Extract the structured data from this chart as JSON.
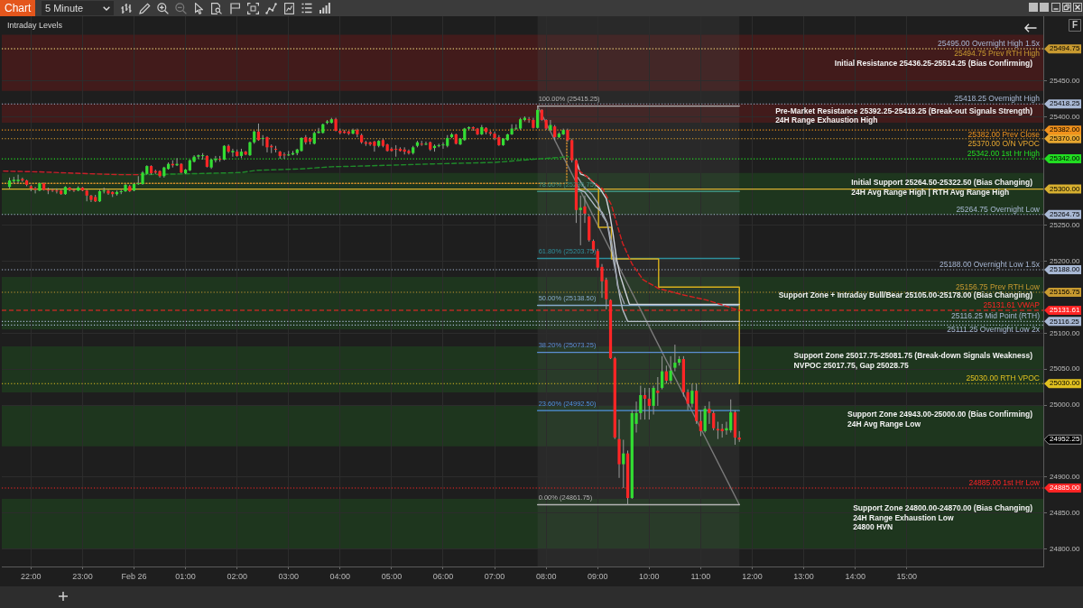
{
  "chart_data": {
    "type": "candlestick",
    "title": "Chart",
    "subtitle": "5 Minute",
    "x": [
      "--02-25T21:35",
      "--02-25T21:40",
      "--02-25T21:45",
      "--02-25T21:50",
      "--02-25T21:55",
      "--02-25T22:00",
      "--02-25T22:05",
      "--02-25T22:10",
      "--02-25T22:15",
      "--02-25T22:20",
      "--02-25T22:25",
      "--02-25T22:30",
      "--02-25T22:35",
      "--02-25T22:40",
      "--02-25T22:45",
      "--02-25T22:50",
      "--02-25T22:55",
      "--02-25T23:00",
      "--02-25T23:05",
      "--02-25T23:10",
      "--02-25T23:15",
      "--02-25T23:20",
      "--02-25T23:25",
      "--02-25T23:30",
      "--02-25T23:35",
      "--02-25T23:40",
      "--02-25T23:45",
      "--02-25T23:50",
      "--02-25T23:55",
      "--02-26T00:00",
      "--02-26T00:05",
      "--02-26T00:10",
      "--02-26T00:15",
      "--02-26T00:20",
      "--02-26T00:25",
      "--02-26T00:30",
      "--02-26T00:35",
      "--02-26T00:40",
      "--02-26T00:45",
      "--02-26T00:50",
      "--02-26T00:55",
      "--02-26T01:00",
      "--02-26T01:05",
      "--02-26T01:10",
      "--02-26T01:15",
      "--02-26T01:20",
      "--02-26T01:25",
      "--02-26T01:30",
      "--02-26T01:35",
      "--02-26T01:40",
      "--02-26T01:45",
      "--02-26T01:50",
      "--02-26T01:55",
      "--02-26T02:00",
      "--02-26T02:05",
      "--02-26T02:10",
      "--02-26T02:15",
      "--02-26T02:20",
      "--02-26T02:25",
      "--02-26T02:30",
      "--02-26T02:35",
      "--02-26T02:40",
      "--02-26T02:45",
      "--02-26T02:50",
      "--02-26T02:55",
      "--02-26T03:00",
      "--02-26T03:05",
      "--02-26T03:10",
      "--02-26T03:15",
      "--02-26T03:20",
      "--02-26T03:25",
      "--02-26T03:30",
      "--02-26T03:35",
      "--02-26T03:40",
      "--02-26T03:45",
      "--02-26T03:50",
      "--02-26T03:55",
      "--02-26T04:00",
      "--02-26T04:05",
      "--02-26T04:10",
      "--02-26T04:15",
      "--02-26T04:20",
      "--02-26T04:25",
      "--02-26T04:30",
      "--02-26T04:35",
      "--02-26T04:40",
      "--02-26T04:45",
      "--02-26T04:50",
      "--02-26T04:55",
      "--02-26T05:00",
      "--02-26T05:05",
      "--02-26T05:10",
      "--02-26T05:15",
      "--02-26T05:20",
      "--02-26T05:25",
      "--02-26T05:30",
      "--02-26T05:35",
      "--02-26T05:40",
      "--02-26T05:45",
      "--02-26T05:50",
      "--02-26T05:55",
      "--02-26T06:00",
      "--02-26T06:05",
      "--02-26T06:10",
      "--02-26T06:15",
      "--02-26T06:20",
      "--02-26T06:25",
      "--02-26T06:30",
      "--02-26T06:35",
      "--02-26T06:40",
      "--02-26T06:45",
      "--02-26T06:50",
      "--02-26T06:55",
      "--02-26T07:00",
      "--02-26T07:05",
      "--02-26T07:10",
      "--02-26T07:15",
      "--02-26T07:20",
      "--02-26T07:25",
      "--02-26T07:30",
      "--02-26T07:35",
      "--02-26T07:40",
      "--02-26T07:45",
      "--02-26T07:50",
      "--02-26T07:55",
      "--02-26T08:00",
      "--02-26T08:05",
      "--02-26T08:10",
      "--02-26T08:15",
      "--02-26T08:20",
      "--02-26T08:25",
      "--02-26T08:30",
      "--02-26T08:35",
      "--02-26T08:40",
      "--02-26T08:45",
      "--02-26T08:50",
      "--02-26T08:55",
      "--02-26T09:00",
      "--02-26T09:05",
      "--02-26T09:10",
      "--02-26T09:15",
      "--02-26T09:20",
      "--02-26T09:25",
      "--02-26T09:30",
      "--02-26T09:35",
      "--02-26T09:40",
      "--02-26T09:45",
      "--02-26T09:50",
      "--02-26T09:55",
      "--02-26T10:00",
      "--02-26T10:05",
      "--02-26T10:10",
      "--02-26T10:15",
      "--02-26T10:20",
      "--02-26T10:25",
      "--02-26T10:30",
      "--02-26T10:35",
      "--02-26T10:40",
      "--02-26T10:45",
      "--02-26T10:50",
      "--02-26T10:55",
      "--02-26T11:00",
      "--02-26T11:05",
      "--02-26T11:10",
      "--02-26T11:15",
      "--02-26T11:20",
      "--02-26T11:25",
      "--02-26T11:30",
      "--02-26T11:35",
      "--02-26T11:40",
      "--02-26T11:45"
    ],
    "ohlc": [
      [
        25303,
        25316,
        25301,
        25312
      ],
      [
        25311,
        25317,
        25308,
        25313
      ],
      [
        25311,
        25320,
        25308,
        25313
      ],
      [
        25314,
        25316,
        25310,
        25312
      ],
      [
        25312,
        25313,
        25304,
        25306
      ],
      [
        25304,
        25306,
        25297,
        25301
      ],
      [
        25301,
        25303,
        25294,
        25299
      ],
      [
        25298,
        25309,
        25297,
        25308
      ],
      [
        25308,
        25309,
        25298,
        25299
      ],
      [
        25299,
        25302,
        25293,
        25298
      ],
      [
        25299,
        25301,
        25296,
        25298
      ],
      [
        25298,
        25301,
        25294,
        25297
      ],
      [
        25298,
        25299,
        25292,
        25293
      ],
      [
        25293,
        25304,
        25292,
        25303
      ],
      [
        25302,
        25303,
        25297,
        25299
      ],
      [
        25299,
        25301,
        25296,
        25298
      ],
      [
        25298,
        25304,
        25297,
        25302
      ],
      [
        25302,
        25303,
        25297,
        25298
      ],
      [
        25298,
        25299,
        25283,
        25291
      ],
      [
        25291,
        25292,
        25282,
        25285
      ],
      [
        25289,
        25292,
        25282,
        25283
      ],
      [
        25283,
        25299,
        25282,
        25297
      ],
      [
        25297,
        25302,
        25294,
        25298
      ],
      [
        25298,
        25299,
        25292,
        25294
      ],
      [
        25296,
        25297,
        25289,
        25293
      ],
      [
        25293,
        25298,
        25291,
        25296
      ],
      [
        25296,
        25299,
        25293,
        25297
      ],
      [
        25297,
        25307,
        25296,
        25306
      ],
      [
        25304,
        25306,
        25296,
        25297
      ],
      [
        25298,
        25308,
        25297,
        25307
      ],
      [
        25307,
        25318,
        25306,
        25308
      ],
      [
        25307,
        25325,
        25306,
        25323
      ],
      [
        25321,
        25333,
        25320,
        25332
      ],
      [
        25332,
        25333,
        25320,
        25322
      ],
      [
        25325,
        25327,
        25321,
        25323
      ],
      [
        25325,
        25326,
        25316,
        25318
      ],
      [
        25318,
        25331,
        25316,
        25330
      ],
      [
        25328,
        25337,
        25327,
        25335
      ],
      [
        25335,
        25340,
        25330,
        25333
      ],
      [
        25333,
        25343,
        25332,
        25335
      ],
      [
        25335,
        25336,
        25322,
        25323
      ],
      [
        25322,
        25328,
        25321,
        25327
      ],
      [
        25326,
        25341,
        25325,
        25340
      ],
      [
        25338,
        25347,
        25337,
        25345
      ],
      [
        25345,
        25348,
        25342,
        25347
      ],
      [
        25346,
        25350,
        25341,
        25347
      ],
      [
        25346,
        25347,
        25330,
        25331
      ],
      [
        25330,
        25342,
        25328,
        25341
      ],
      [
        25340,
        25346,
        25337,
        25342
      ],
      [
        25342,
        25346,
        25338,
        25341
      ],
      [
        25341,
        25361,
        25340,
        25360
      ],
      [
        25360,
        25362,
        25350,
        25352
      ],
      [
        25351,
        25356,
        25345,
        25353
      ],
      [
        25352,
        25355,
        25345,
        25346
      ],
      [
        25346,
        25356,
        25343,
        25352
      ],
      [
        25352,
        25353,
        25347,
        25348
      ],
      [
        25347,
        25366,
        25346,
        25365
      ],
      [
        25365,
        25381,
        25363,
        25380
      ],
      [
        25380,
        25391,
        25367,
        25368
      ],
      [
        25370,
        25375,
        25360,
        25371
      ],
      [
        25372,
        25373,
        25351,
        25358
      ],
      [
        25360,
        25362,
        25350,
        25358
      ],
      [
        25356,
        25360,
        25351,
        25355
      ],
      [
        25352,
        25353,
        25342,
        25346
      ],
      [
        25348,
        25351,
        25342,
        25347
      ],
      [
        25348,
        25353,
        25346,
        25348
      ],
      [
        25348,
        25353,
        25347,
        25350
      ],
      [
        25350,
        25356,
        25347,
        25355
      ],
      [
        25353,
        25372,
        25352,
        25371
      ],
      [
        25372,
        25375,
        25362,
        25365
      ],
      [
        25370,
        25372,
        25362,
        25366
      ],
      [
        25363,
        25380,
        25362,
        25378
      ],
      [
        25378,
        25385,
        25377,
        25380
      ],
      [
        25378,
        25391,
        25377,
        25390
      ],
      [
        25392,
        25396,
        25390,
        25394
      ],
      [
        25392,
        25399,
        25391,
        25397
      ],
      [
        25397,
        25399,
        25380,
        25381
      ],
      [
        25381,
        25384,
        25376,
        25378
      ],
      [
        25380,
        25382,
        25377,
        25378
      ],
      [
        25380,
        25381,
        25375,
        25377
      ],
      [
        25377,
        25384,
        25376,
        25382
      ],
      [
        25382,
        25384,
        25372,
        25376
      ],
      [
        25375,
        25377,
        25363,
        25365
      ],
      [
        25365,
        25367,
        25360,
        25363
      ],
      [
        25365,
        25366,
        25360,
        25362
      ],
      [
        25366,
        25367,
        25352,
        25360
      ],
      [
        25360,
        25368,
        25358,
        25367
      ],
      [
        25368,
        25370,
        25358,
        25360
      ],
      [
        25362,
        25363,
        25352,
        25353
      ],
      [
        25356,
        25358,
        25352,
        25353
      ],
      [
        25356,
        25361,
        25345,
        25355
      ],
      [
        25356,
        25358,
        25352,
        25353
      ],
      [
        25355,
        25358,
        25348,
        25352
      ],
      [
        25353,
        25355,
        25348,
        25350
      ],
      [
        25350,
        25360,
        25348,
        25358
      ],
      [
        25360,
        25367,
        25358,
        25365
      ],
      [
        25363,
        25367,
        25360,
        25362
      ],
      [
        25362,
        25366,
        25361,
        25363
      ],
      [
        25365,
        25366,
        25353,
        25355
      ],
      [
        25357,
        25362,
        25352,
        25360
      ],
      [
        25360,
        25363,
        25358,
        25361
      ],
      [
        25361,
        25365,
        25356,
        25362
      ],
      [
        25360,
        25375,
        25358,
        25371
      ],
      [
        25372,
        25378,
        25371,
        25376
      ],
      [
        25376,
        25377,
        25362,
        25363
      ],
      [
        25362,
        25371,
        25361,
        25370
      ],
      [
        25368,
        25385,
        25367,
        25384
      ],
      [
        25384,
        25387,
        25382,
        25386
      ],
      [
        25386,
        25387,
        25381,
        25384
      ],
      [
        25384,
        25385,
        25375,
        25376
      ],
      [
        25376,
        25389,
        25375,
        25386
      ],
      [
        25385,
        25386,
        25376,
        25379
      ],
      [
        25379,
        25381,
        25374,
        25377
      ],
      [
        25377,
        25380,
        25368,
        25371
      ],
      [
        25372,
        25375,
        25360,
        25361
      ],
      [
        25361,
        25371,
        25360,
        25370
      ],
      [
        25368,
        25377,
        25367,
        25376
      ],
      [
        25376,
        25390,
        25375,
        25384
      ],
      [
        25384,
        25390,
        25382,
        25385
      ],
      [
        25384,
        25399,
        25382,
        25397
      ],
      [
        25396,
        25401,
        25394,
        25399
      ],
      [
        25397,
        25400,
        25392,
        25396
      ],
      [
        25396,
        25399,
        25384,
        25385
      ],
      [
        25385,
        25415.25,
        25384,
        25410
      ],
      [
        25410,
        25411,
        25395,
        25396
      ],
      [
        25396,
        25397,
        25382,
        25384
      ],
      [
        25382,
        25396,
        25381,
        25389
      ],
      [
        25387,
        25389,
        25368,
        25372
      ],
      [
        25372,
        25379,
        25371,
        25377
      ],
      [
        25376,
        25384,
        25375,
        25382
      ],
      [
        25382,
        25384,
        25366,
        25368
      ],
      [
        25368,
        25370,
        25337,
        25340
      ],
      [
        25340,
        25342,
        25253,
        25271
      ],
      [
        25271,
        25291,
        25222,
        25274
      ],
      [
        25276,
        25291,
        25253,
        25266
      ],
      [
        25262,
        25264,
        25227,
        25229
      ],
      [
        25228,
        25230,
        25212,
        25215
      ],
      [
        25214,
        25217,
        25187,
        25191
      ],
      [
        25192,
        25196,
        25149,
        25172
      ],
      [
        25174,
        25177,
        25133,
        25147
      ],
      [
        25146,
        25147,
        25064,
        25065
      ],
      [
        25065,
        25067,
        24953,
        24955
      ],
      [
        24953,
        24980,
        24899,
        24918
      ],
      [
        24918,
        24952,
        24885,
        24933
      ],
      [
        24933,
        24937,
        24861.75,
        24871
      ],
      [
        24871,
        24993,
        24870,
        24989
      ],
      [
        24974,
        25005,
        24962,
        24989
      ],
      [
        24989,
        25027,
        24980,
        25014
      ],
      [
        25014,
        25024,
        24980,
        25009
      ],
      [
        25009,
        25024,
        24980,
        24999
      ],
      [
        24999,
        25027,
        24987,
        25024
      ],
      [
        25020,
        25039,
        24999,
        25017
      ],
      [
        25024,
        25068,
        25022,
        25047
      ],
      [
        25047,
        25055,
        25030,
        25034
      ],
      [
        25034,
        25068,
        25030,
        25048
      ],
      [
        25052,
        25084,
        25047,
        25059
      ],
      [
        25059,
        25068,
        25055,
        25064
      ],
      [
        25064,
        25068,
        25012,
        25018
      ],
      [
        25018,
        25022,
        24993,
        25002
      ],
      [
        25002,
        25030,
        24997,
        25020
      ],
      [
        25020,
        25030,
        24974,
        24978
      ],
      [
        24978,
        24993,
        24957,
        24964
      ],
      [
        24964,
        24999,
        24962,
        24995
      ],
      [
        24995,
        25005,
        24974,
        24989
      ],
      [
        24989,
        24992,
        24965,
        24968
      ],
      [
        24967,
        24977,
        24953,
        24965
      ],
      [
        24967,
        24974,
        24955,
        24964
      ],
      [
        24965,
        24977,
        24959,
        24968
      ],
      [
        24965,
        25008,
        24962,
        24990
      ],
      [
        24990,
        24993,
        24945,
        24955
      ],
      [
        24955,
        24964,
        24949,
        24952.25
      ]
    ],
    "series": [
      {
        "type": "line",
        "color": "#c8202a",
        "line_style": "dashed",
        "x": [
          "--02-25T21:28",
          "--02-25T22:07",
          "--02-25T22:52",
          "--02-25T23:44",
          "--02-26T00:09"
        ],
        "values": [
          25325,
          25324,
          25322,
          25320,
          25320
        ]
      },
      {
        "type": "line",
        "color": "#1f8a2a",
        "line_style": "dashed",
        "x": [
          "--02-26T00:09",
          "--02-26T00:55",
          "--02-26T02:05",
          "--02-26T02:22",
          "--02-26T03:14",
          "--02-26T03:50",
          "--02-26T04:25",
          "--02-26T05:49",
          "--02-26T06:59",
          "--02-26T07:52",
          "--02-26T08:26"
        ],
        "values": [
          25320,
          25321,
          25323,
          25326,
          25328,
          25331,
          25332,
          25335,
          25337,
          25342,
          25345
        ]
      },
      {
        "type": "line",
        "color": "#d42020",
        "line_style": "dashed",
        "x": [
          "--02-26T08:38",
          "--02-26T09:06",
          "--02-26T09:16",
          "--02-26T09:22",
          "--02-26T09:29",
          "--02-26T09:40",
          "--02-26T09:53",
          "--02-26T10:11",
          "--02-26T10:40",
          "--02-26T11:07",
          "--02-26T11:45"
        ],
        "values": [
          25326,
          25300,
          25278,
          25253,
          25225,
          25196,
          25174,
          25162,
          25153,
          25146,
          25131.61
        ]
      },
      {
        "type": "line",
        "color": "#d0d4dc",
        "x": [
          "--02-26T08:35",
          "--02-26T08:40",
          "--02-26T08:47",
          "--02-26T08:56",
          "--02-26T09:03",
          "--02-26T09:10",
          "--02-26T09:14",
          "--02-26T09:18",
          "--02-26T09:22",
          "--02-26T09:26",
          "--02-26T09:31",
          "--02-26T09:37",
          "--02-26T11:45"
        ],
        "values": [
          25340,
          25321,
          25318,
          25308,
          25300,
          25287,
          25266,
          25237,
          25203,
          25181,
          25162,
          25140,
          25140
        ]
      },
      {
        "type": "line",
        "color": "#9aa0ac",
        "x": [
          "--02-26T08:37",
          "--02-26T08:44",
          "--02-26T08:53",
          "--02-26T09:00",
          "--02-26T09:06",
          "--02-26T09:11",
          "--02-26T09:16",
          "--02-26T09:20",
          "--02-26T09:23",
          "--02-26T09:27",
          "--02-26T09:31"
        ],
        "values": [
          25316,
          25303,
          25293,
          25281,
          25262,
          25253,
          25228,
          25200,
          25166,
          25153,
          25141
        ]
      },
      {
        "type": "line",
        "color": "#b4bcc8",
        "x": [
          "--02-26T08:37",
          "--02-26T08:45",
          "--02-26T08:53",
          "--02-26T08:58",
          "--02-26T09:05",
          "--02-26T09:11",
          "--02-26T09:14",
          "--02-26T09:18",
          "--02-26T09:22",
          "--02-26T09:26",
          "--02-26T09:29",
          "--02-26T09:35",
          "--02-26T11:45"
        ],
        "values": [
          25300,
          25296,
          25283,
          25275,
          25268,
          25253,
          25233,
          25203,
          25178,
          25149,
          25133,
          25116.25,
          25116.25
        ]
      },
      {
        "type": "step",
        "color": "#d8b01c",
        "x": [
          "--02-26T08:37",
          "--02-26T09:01",
          "--02-26T09:16",
          "--02-26T10:11",
          "--02-26T11:45"
        ],
        "values": [
          25300,
          25247,
          25203,
          25164,
          25030
        ]
      },
      {
        "type": "step",
        "color": "#d8902a",
        "line_style": "dotted",
        "x": [
          "--02-25T21:26",
          "--02-26T08:24",
          "--02-26T08:24"
        ],
        "values": [
          25308,
          25308,
          25370
        ]
      },
      {
        "type": "line",
        "color": "#b4b4b4",
        "x": [
          "--02-26T07:50",
          "--02-26T11:45"
        ],
        "values": [
          25415.25,
          25415.25
        ]
      },
      {
        "type": "line",
        "color": "#3f8f7d",
        "x": [
          "--02-26T07:50",
          "--02-26T11:45"
        ],
        "values": [
          25296.75,
          25296.75
        ]
      },
      {
        "type": "line",
        "color": "#2e8f9c",
        "x": [
          "--02-26T07:50",
          "--02-26T11:45"
        ],
        "values": [
          25203.75,
          25203.75
        ]
      },
      {
        "type": "line",
        "color": "#86aacc",
        "x": [
          "--02-26T07:50",
          "--02-26T11:45"
        ],
        "values": [
          25138.5,
          25138.5
        ]
      },
      {
        "type": "line",
        "color": "#5c8fd4",
        "x": [
          "--02-26T07:50",
          "--02-26T11:45"
        ],
        "values": [
          25073.25,
          25073.25
        ]
      },
      {
        "type": "line",
        "color": "#4f94de",
        "x": [
          "--02-26T07:50",
          "--02-26T11:45"
        ],
        "values": [
          24992.5,
          24992.5
        ]
      },
      {
        "type": "line",
        "color": "#b4b4b4",
        "x": [
          "--02-26T07:50",
          "--02-26T11:45"
        ],
        "values": [
          24861.75,
          24861.75
        ]
      },
      {
        "type": "line",
        "color": "#7a7a7a",
        "x": [
          "--02-26T07:50",
          "--02-26T11:45"
        ],
        "values": [
          25415.25,
          24861.75
        ]
      }
    ],
    "ref_lines": [
      {
        "axis": "y",
        "value": 25495,
        "label": "25495.00 Overnight High 1.5x",
        "color": "#a8b8d4",
        "line_style": "dotted"
      },
      {
        "axis": "y",
        "value": 25494.75,
        "label": "25494.75 Prev RTH High",
        "color": "#c89a30",
        "line_style": "dotted"
      },
      {
        "axis": "y",
        "value": 25418.25,
        "label": "25418.25 Overnight High",
        "color": "#a8b8d4",
        "line_style": "dotted"
      },
      {
        "axis": "y",
        "value": 25382,
        "label": "25382.00 Prev Close",
        "color": "#f0921c",
        "line_style": "dotted"
      },
      {
        "axis": "y",
        "value": 25370,
        "label": "25370.00 O/N VPOC",
        "color": "#e8a830",
        "line_style": "dotted"
      },
      {
        "axis": "y",
        "value": 25342,
        "label": "25342.00 1st Hr High",
        "color": "#22dd22",
        "line_style": "dotted"
      },
      {
        "axis": "y",
        "value": 25300,
        "color": "#d8b030",
        "line_style": "solid"
      },
      {
        "axis": "y",
        "value": 25264.75,
        "label": "25264.75 Overnight Low",
        "color": "#a8b8d4",
        "line_style": "dotted"
      },
      {
        "axis": "y",
        "value": 25188,
        "label": "25188.00 Overnight Low 1.5x",
        "color": "#a8b8d4",
        "line_style": "dotted"
      },
      {
        "axis": "y",
        "value": 25156.75,
        "label": "25156.75 Prev RTH Low",
        "color": "#c89a30",
        "line_style": "dotted"
      },
      {
        "axis": "y",
        "value": 25131.61,
        "label": "25131.61 VWAP",
        "color": "#ff2424",
        "line_style": "dashed"
      },
      {
        "axis": "y",
        "value": 25116.25,
        "label": "25116.25 Mid Point (RTH)",
        "color": "#a8b8d4",
        "line_style": "dotted"
      },
      {
        "axis": "y",
        "value": 25111.25,
        "label": "25111.25 Overnight Low 2x",
        "color": "#a8b8d4",
        "line_style": "dotted"
      },
      {
        "axis": "y",
        "value": 25030,
        "label": "25030.00 RTH VPOC",
        "color": "#e0c020",
        "line_style": "dotted"
      },
      {
        "axis": "y",
        "value": 24885,
        "label": "24885.00 1st Hr Low",
        "color": "#ff2424",
        "line_style": "dotted"
      }
    ],
    "bands": [
      {
        "axis": "y",
        "from": 25436.25,
        "to": 25514.25,
        "label": "Initial Resistance 25436.25-25514.25 (Bias Confirming)",
        "color": "#8a1616"
      },
      {
        "axis": "y",
        "from": 25392.25,
        "to": 25418.25,
        "label": "Pre-Market Resistance 25392.25-25418.25 (Break-out Signals Strength)\n24H Range Exhaustion High",
        "color": "#8a1616"
      },
      {
        "axis": "y",
        "from": 25264.5,
        "to": 25322.5,
        "label": "Initial Support 25264.50-25322.50 (Bias Changing)\n24H Avg Range High | RTH Avg Range High",
        "color": "#1f661f"
      },
      {
        "axis": "y",
        "from": 25105,
        "to": 25178,
        "label": "Support Zone + Intraday Bull/Bear 25105.00-25178.00 (Bias Changing)",
        "color": "#1f661f"
      },
      {
        "axis": "y",
        "from": 25017.75,
        "to": 25081.75,
        "label": "Support Zone 25017.75-25081.75 (Break-down Signals Weakness)\nNVPOC 25017.75, Gap 25028.75",
        "color": "#1f661f"
      },
      {
        "axis": "y",
        "from": 24943,
        "to": 25000,
        "label": "Support Zone 24943.00-25000.00 (Bias Confirming)\n24H Avg Range Low",
        "color": "#1f661f"
      },
      {
        "axis": "y",
        "from": 24800,
        "to": 24870,
        "label": "Support Zone 24800.00-24870.00 (Bias Changing)\n24H Range Exhaustion Low\n24800 HVN",
        "color": "#1f661f"
      },
      {
        "axis": "x",
        "from": "--02-26T07:50",
        "to": "--02-26T11:45",
        "color": "#4a4a4a"
      }
    ],
    "annotations": [
      "Intraday Levels",
      {
        "text": "100.00% (25415.25)",
        "x": "--02-26T07:50",
        "y": 25415.25
      },
      {
        "text": "78.60% (25296.75)",
        "x": "--02-26T07:50",
        "y": 25296.75
      },
      {
        "text": "61.80% (25203.75)",
        "x": "--02-26T07:50",
        "y": 25203.75
      },
      {
        "text": "50.00% (25138.50)",
        "x": "--02-26T07:50",
        "y": 25138.5
      },
      {
        "text": "38.20% (25073.25)",
        "x": "--02-26T07:50",
        "y": 25073.25
      },
      {
        "text": "23.60% (24992.50)",
        "x": "--02-26T07:50",
        "y": 24992.5
      },
      {
        "text": "0.00% (24861.75)",
        "x": "--02-26T07:50",
        "y": 24861.75
      },
      "F"
    ],
    "xlim": [
      "--02-25T21:26",
      "--02-26T17:39"
    ],
    "xticks": [
      {
        "value": "--02-25T22:00",
        "label": "22:00"
      },
      {
        "value": "--02-25T23:00",
        "label": "23:00"
      },
      {
        "value": "--02-26T00:00",
        "label": "Feb 26"
      },
      {
        "value": "--02-26T01:00",
        "label": "01:00"
      },
      {
        "value": "--02-26T02:00",
        "label": "02:00"
      },
      {
        "value": "--02-26T03:00",
        "label": "03:00"
      },
      {
        "value": "--02-26T04:00",
        "label": "04:00"
      },
      {
        "value": "--02-26T05:00",
        "label": "05:00"
      },
      {
        "value": "--02-26T06:00",
        "label": "06:00"
      },
      {
        "value": "--02-26T07:00",
        "label": "07:00"
      },
      {
        "value": "--02-26T08:00",
        "label": "08:00"
      },
      {
        "value": "--02-26T09:00",
        "label": "09:00"
      },
      {
        "value": "--02-26T10:00",
        "label": "10:00"
      },
      {
        "value": "--02-26T11:00",
        "label": "11:00"
      },
      {
        "value": "--02-26T12:00",
        "label": "12:00"
      },
      {
        "value": "--02-26T13:00",
        "label": "13:00"
      },
      {
        "value": "--02-26T14:00",
        "label": "14:00"
      },
      {
        "value": "--02-26T15:00",
        "label": "15:00"
      }
    ],
    "ylim": [
      24776,
      25540
    ],
    "yticks": [
      {
        "value": 24800,
        "label": "24800.00"
      },
      {
        "value": 24850,
        "label": "24850.00"
      },
      {
        "value": 24885,
        "label": "24885.00"
      },
      {
        "value": 24900,
        "label": "24900.00"
      },
      {
        "value": 24952.25,
        "label": "24952.25"
      },
      {
        "value": 25000,
        "label": "25000.00"
      },
      {
        "value": 25030,
        "label": "25030.00"
      },
      {
        "value": 25050,
        "label": "25050.00"
      },
      {
        "value": 25100,
        "label": "25100.00"
      },
      {
        "value": 25116.25,
        "label": "25116.25"
      },
      {
        "value": 25131.61,
        "label": "25131.61"
      },
      {
        "value": 25156.75,
        "label": "25156.75"
      },
      {
        "value": 25188,
        "label": "25188.00"
      },
      {
        "value": 25200,
        "label": "25200.00"
      },
      {
        "value": 25250,
        "label": "25250.00"
      },
      {
        "value": 25264.75,
        "label": "25264.75"
      },
      {
        "value": 25300,
        "label": "25300.00"
      },
      {
        "value": 25342,
        "label": "25342.00"
      },
      {
        "value": 25370,
        "label": "25370.00"
      },
      {
        "value": 25382,
        "label": "25382.00"
      },
      {
        "value": 25400,
        "label": "25400.00"
      },
      {
        "value": 25418.25,
        "label": "25418.25"
      },
      {
        "value": 25450,
        "label": "25450.00"
      },
      {
        "value": 25494.75,
        "label": "25494.75"
      }
    ],
    "grid": true
  }
}
